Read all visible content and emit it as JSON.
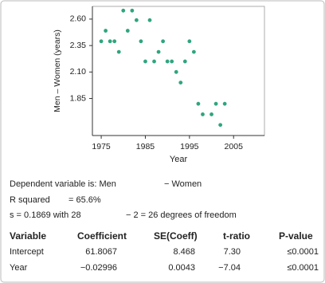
{
  "chart_data": {
    "type": "scatter",
    "xlabel": "Year",
    "ylabel": "Men – Women (years)",
    "color": "#2fa57f",
    "x": [
      1975,
      1976,
      1977,
      1978,
      1979,
      1980,
      1981,
      1982,
      1983,
      1984,
      1985,
      1986,
      1987,
      1988,
      1989,
      1990,
      1991,
      1992,
      1993,
      1994,
      1995,
      1996,
      1997,
      1998,
      2000,
      2001,
      2002,
      2003
    ],
    "values": [
      2.39,
      2.49,
      2.39,
      2.39,
      2.29,
      2.68,
      2.49,
      2.68,
      2.59,
      2.39,
      2.2,
      2.59,
      2.2,
      2.29,
      2.39,
      2.2,
      2.2,
      2.1,
      2.0,
      2.2,
      2.39,
      2.29,
      1.8,
      1.7,
      1.7,
      1.8,
      1.6,
      1.8
    ],
    "xlim": [
      1973,
      2012
    ],
    "ylim": [
      1.5,
      2.72
    ],
    "xticks": [
      1975,
      1985,
      1995,
      2005
    ],
    "yticks": [
      1.85,
      {
        "value": 2.1,
        "label": "2.10"
      },
      2.35,
      {
        "value": 2.6,
        "label": "2.60"
      }
    ]
  },
  "regression": {
    "dependent": [
      "Dependent variable is: Men",
      "− Women"
    ],
    "rsq": [
      "R squared",
      "= 65.6%"
    ],
    "s": [
      "s = 0.1869 with 28",
      "− 2 = 26 degrees of freedom"
    ],
    "table": {
      "header": [
        "Variable",
        "Coefficient",
        "SE(Coeff)",
        "t-ratio",
        "P-value"
      ],
      "rows": [
        [
          "Intercept",
          "61.8067",
          "8.468",
          "7.30",
          "≤0.0001"
        ],
        [
          "Year",
          "−0.02996",
          "0.0043",
          "−7.04",
          "≤0.0001"
        ]
      ]
    }
  }
}
